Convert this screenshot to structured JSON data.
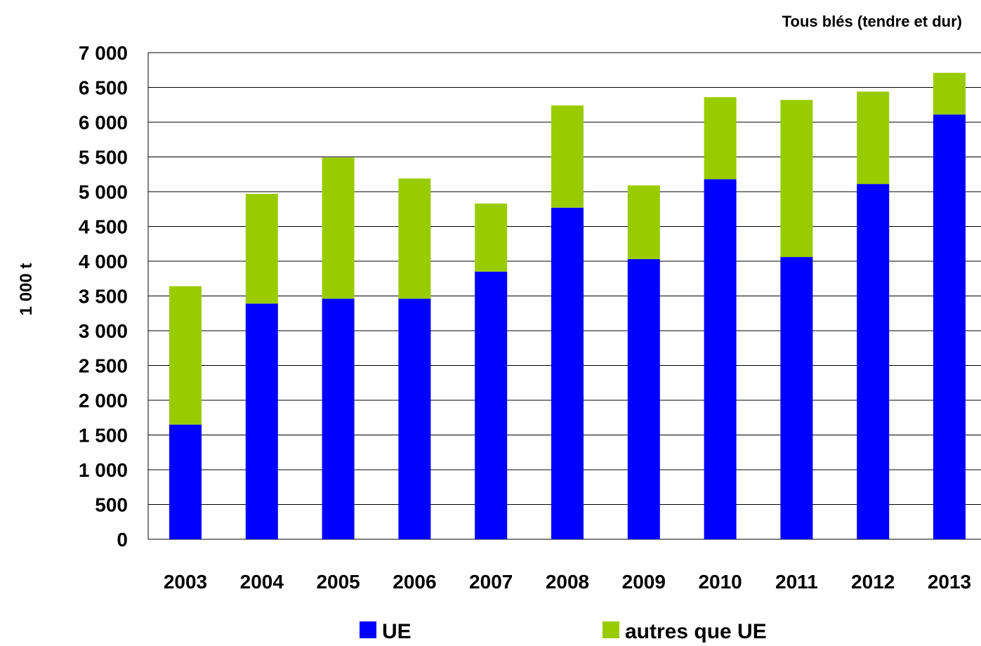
{
  "chart_data": {
    "type": "bar",
    "stacked": true,
    "subtitle": "Tous blés (tendre et dur)",
    "xlabel": "",
    "ylabel": "1 000 t",
    "ylim": [
      0,
      7000
    ],
    "yticks": [
      0,
      500,
      1000,
      1500,
      2000,
      2500,
      3000,
      3500,
      4000,
      4500,
      5000,
      5500,
      6000,
      6500,
      7000
    ],
    "ytick_labels": [
      "0",
      "500",
      "1 000",
      "1 500",
      "2 000",
      "2 500",
      "3 000",
      "3 500",
      "4 000",
      "4 500",
      "5 000",
      "5 500",
      "6 000",
      "6 500",
      "7 000"
    ],
    "grid": true,
    "legend_position": "bottom",
    "categories": [
      "2003",
      "2004",
      "2005",
      "2006",
      "2007",
      "2008",
      "2009",
      "2010",
      "2011",
      "2012",
      "2013"
    ],
    "series": [
      {
        "name": "UE",
        "color": "#0000ff",
        "values": [
          1650,
          3390,
          3460,
          3460,
          3850,
          4770,
          4030,
          5180,
          4060,
          5110,
          6110
        ]
      },
      {
        "name": "autres que UE",
        "color": "#99cc00",
        "values": [
          1990,
          1580,
          2030,
          1730,
          980,
          1470,
          1060,
          1180,
          2260,
          1330,
          600
        ]
      }
    ]
  }
}
